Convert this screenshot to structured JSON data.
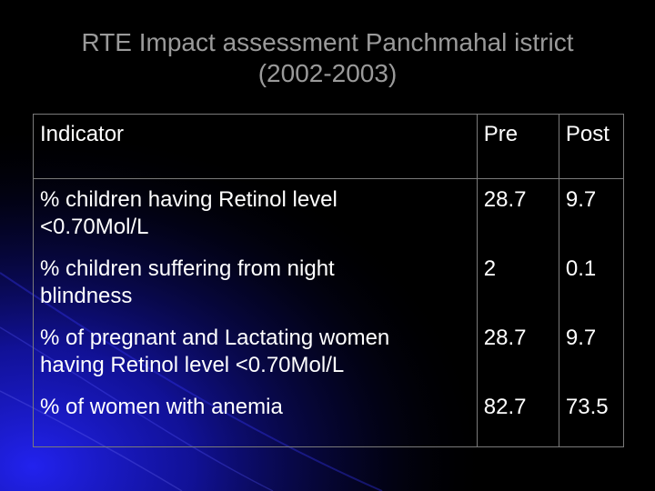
{
  "slide": {
    "title_line1": "RTE Impact assessment Panchmahal istrict",
    "title_line2": "(2002-2003)"
  },
  "table": {
    "headers": {
      "indicator": "Indicator",
      "pre": "Pre",
      "post": "Post"
    },
    "rows": [
      {
        "indicator_line1": "% children having Retinol level",
        "indicator_line2": "<0.70Mol/L",
        "pre": "28.7",
        "post": "9.7"
      },
      {
        "indicator_line1": "% children suffering from night",
        "indicator_line2": "blindness",
        "pre": "2",
        "post": "0.1"
      },
      {
        "indicator_line1": "% of pregnant and Lactating women",
        "indicator_line2": "having Retinol level <0.70Mol/L",
        "pre": "28.7",
        "post": "9.7"
      },
      {
        "indicator_line1": "% of women with anemia",
        "indicator_line2": "",
        "pre": "82.7",
        "post": "73.5"
      }
    ]
  },
  "colors": {
    "background": "#000000",
    "title": "#9a9a9a",
    "text": "#ffffff",
    "border": "#7a7a7a",
    "accent_blue": "#1a1ad0"
  }
}
